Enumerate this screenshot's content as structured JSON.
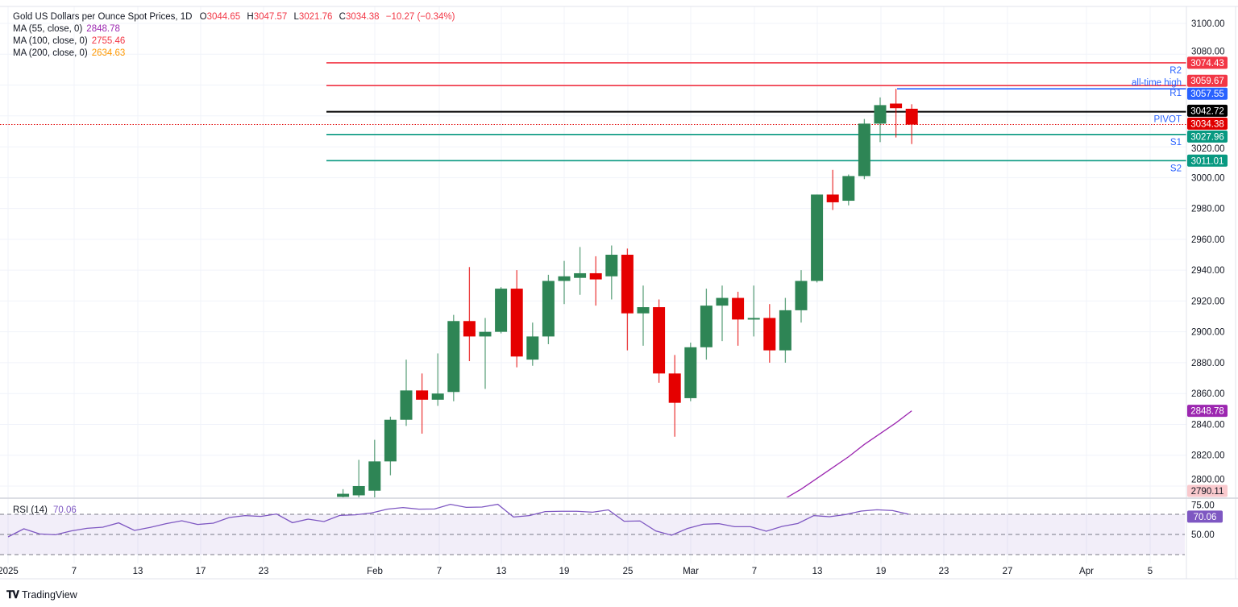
{
  "header": {
    "symbol": "Gold US Dollars per Ounce Spot Prices, 1D",
    "open_label": "O",
    "open": "3044.65",
    "high_label": "H",
    "high": "3047.57",
    "low_label": "L",
    "low": "3021.76",
    "close_label": "C",
    "close": "3034.38",
    "change": "−10.27 (−0.34%)",
    "value_color": "#f23645"
  },
  "indicators": [
    {
      "label": "MA (55, close, 0)",
      "value": "2848.78",
      "color": "#9c27b0"
    },
    {
      "label": "MA (100, close, 0)",
      "value": "2755.46",
      "color": "#f23645"
    },
    {
      "label": "MA (200, close, 0)",
      "value": "2634.63",
      "color": "#ff9800"
    }
  ],
  "price_axis": {
    "ticks": [
      "3100.00",
      "3080.00",
      "3020.00",
      "3000.00",
      "2980.00",
      "2960.00",
      "2940.00",
      "2920.00",
      "2900.00",
      "2880.00",
      "2860.00",
      "2840.00",
      "2820.00",
      "2800.00"
    ]
  },
  "levels": [
    {
      "name": "R2",
      "value": 3074.43,
      "label": "3074.43",
      "color": "#f23645",
      "text_color": "#2962ff"
    },
    {
      "name": "R1",
      "value": 3059.67,
      "label": "3059.67",
      "color": "#f23645",
      "text_color": "#2962ff"
    },
    {
      "name": "PIVOT",
      "value": 3042.72,
      "label": "3042.72",
      "color": "#000000",
      "text_color": "#2962ff"
    },
    {
      "name": "S1",
      "value": 3027.96,
      "label": "3027.96",
      "color": "#089981",
      "text_color": "#2962ff"
    },
    {
      "name": "S2",
      "value": 3011.01,
      "label": "3011.01",
      "color": "#089981",
      "text_color": "#2962ff"
    }
  ],
  "all_time_high": {
    "text": "all-time high",
    "value": 3057.55,
    "label": "3057.55",
    "color": "#2962ff"
  },
  "last_price": {
    "value": 3034.38,
    "label": "3034.38",
    "color": "#e00000"
  },
  "ma55_badge": {
    "label": "2848.78",
    "color": "#9c27b0"
  },
  "low_badge": {
    "label": "2790.11",
    "color": "#f9c9cd"
  },
  "rsi": {
    "title": "RSI (14)",
    "value": "70.06",
    "color": "#7e57c2",
    "ticks": [
      "75.00",
      "50.00"
    ],
    "levels": [
      70,
      50,
      30
    ]
  },
  "time_axis": {
    "labels": [
      "2025",
      "7",
      "13",
      "17",
      "23",
      "Feb",
      "7",
      "13",
      "19",
      "25",
      "Mar",
      "7",
      "13",
      "19",
      "23",
      "27",
      "Apr",
      "5"
    ]
  },
  "footer": {
    "brand": "TradingView"
  },
  "chart_data": {
    "type": "candlestick",
    "title": "Gold US Dollars per Ounce Spot Prices, 1D",
    "ylim": [
      2790,
      3110
    ],
    "up_color": "#2e8555",
    "down_color": "#e50000",
    "candles": [
      {
        "date": "2025-01-30",
        "o": 2793,
        "h": 2798,
        "l": 2790,
        "c": 2795
      },
      {
        "date": "2025-01-31",
        "o": 2794,
        "h": 2817,
        "l": 2791,
        "c": 2800
      },
      {
        "date": "2025-02-03",
        "o": 2797,
        "h": 2830,
        "l": 2792,
        "c": 2816
      },
      {
        "date": "2025-02-04",
        "o": 2816,
        "h": 2845,
        "l": 2807,
        "c": 2843
      },
      {
        "date": "2025-02-05",
        "o": 2843,
        "h": 2882,
        "l": 2839,
        "c": 2862
      },
      {
        "date": "2025-02-06",
        "o": 2862,
        "h": 2873,
        "l": 2834,
        "c": 2856
      },
      {
        "date": "2025-02-07",
        "o": 2856,
        "h": 2886,
        "l": 2852,
        "c": 2860
      },
      {
        "date": "2025-02-10",
        "o": 2861,
        "h": 2911,
        "l": 2855,
        "c": 2907
      },
      {
        "date": "2025-02-11",
        "o": 2907,
        "h": 2942,
        "l": 2881,
        "c": 2897
      },
      {
        "date": "2025-02-12",
        "o": 2897,
        "h": 2909,
        "l": 2863,
        "c": 2900
      },
      {
        "date": "2025-02-13",
        "o": 2900,
        "h": 2929,
        "l": 2899,
        "c": 2928
      },
      {
        "date": "2025-02-14",
        "o": 2928,
        "h": 2940,
        "l": 2877,
        "c": 2884
      },
      {
        "date": "2025-02-17",
        "o": 2882,
        "h": 2906,
        "l": 2878,
        "c": 2897
      },
      {
        "date": "2025-02-18",
        "o": 2897,
        "h": 2937,
        "l": 2892,
        "c": 2933
      },
      {
        "date": "2025-02-19",
        "o": 2933,
        "h": 2946,
        "l": 2918,
        "c": 2936
      },
      {
        "date": "2025-02-20",
        "o": 2935,
        "h": 2955,
        "l": 2924,
        "c": 2938
      },
      {
        "date": "2025-02-21",
        "o": 2938,
        "h": 2949,
        "l": 2917,
        "c": 2934
      },
      {
        "date": "2025-02-24",
        "o": 2936,
        "h": 2956,
        "l": 2921,
        "c": 2950
      },
      {
        "date": "2025-02-25",
        "o": 2950,
        "h": 2954,
        "l": 2888,
        "c": 2912
      },
      {
        "date": "2025-02-26",
        "o": 2912,
        "h": 2930,
        "l": 2891,
        "c": 2916
      },
      {
        "date": "2025-02-27",
        "o": 2916,
        "h": 2921,
        "l": 2867,
        "c": 2873
      },
      {
        "date": "2025-02-28",
        "o": 2873,
        "h": 2885,
        "l": 2832,
        "c": 2854
      },
      {
        "date": "2025-03-03",
        "o": 2857,
        "h": 2893,
        "l": 2855,
        "c": 2890
      },
      {
        "date": "2025-03-04",
        "o": 2890,
        "h": 2928,
        "l": 2882,
        "c": 2917
      },
      {
        "date": "2025-03-05",
        "o": 2917,
        "h": 2930,
        "l": 2894,
        "c": 2922
      },
      {
        "date": "2025-03-06",
        "o": 2922,
        "h": 2926,
        "l": 2891,
        "c": 2908
      },
      {
        "date": "2025-03-07",
        "o": 2908,
        "h": 2930,
        "l": 2897,
        "c": 2909
      },
      {
        "date": "2025-03-10",
        "o": 2909,
        "h": 2918,
        "l": 2880,
        "c": 2888
      },
      {
        "date": "2025-03-11",
        "o": 2888,
        "h": 2922,
        "l": 2880,
        "c": 2914
      },
      {
        "date": "2025-03-12",
        "o": 2914,
        "h": 2940,
        "l": 2906,
        "c": 2933
      },
      {
        "date": "2025-03-13",
        "o": 2933,
        "h": 2989,
        "l": 2932,
        "c": 2989
      },
      {
        "date": "2025-03-14",
        "o": 2989,
        "h": 3005,
        "l": 2979,
        "c": 2984
      },
      {
        "date": "2025-03-17",
        "o": 2985,
        "h": 3002,
        "l": 2982,
        "c": 3001
      },
      {
        "date": "2025-03-18",
        "o": 3001,
        "h": 3038,
        "l": 2999,
        "c": 3035
      },
      {
        "date": "2025-03-19",
        "o": 3035,
        "h": 3052,
        "l": 3023,
        "c": 3047
      },
      {
        "date": "2025-03-20",
        "o": 3048,
        "h": 3057.55,
        "l": 3026,
        "c": 3045
      },
      {
        "date": "2025-03-21",
        "o": 3044.65,
        "h": 3047.57,
        "l": 3021.76,
        "c": 3034.38
      }
    ],
    "ma55": {
      "dates": [
        "2025-03-11",
        "2025-03-12",
        "2025-03-13",
        "2025-03-14",
        "2025-03-17",
        "2025-03-18",
        "2025-03-19",
        "2025-03-20",
        "2025-03-21"
      ],
      "values": [
        2792,
        2798,
        2805,
        2812,
        2819,
        2827,
        2834,
        2841,
        2848.78
      ]
    },
    "rsi": {
      "start_date": "2025-01-01",
      "values": [
        47.6,
        55.6,
        50.5,
        49.7,
        53.5,
        56.1,
        57.2,
        61.5,
        54,
        57,
        60.7,
        63.6,
        59.9,
        61.2,
        66.8,
        68.7,
        67.9,
        70.3,
        61.7,
        65.2,
        62.8,
        68.9,
        69.5,
        71.3,
        75.1,
        76.7,
        75.1,
        75.3,
        79.9,
        76.9,
        77.2,
        79.9,
        67.3,
        68.7,
        72.7,
        73,
        73,
        72.1,
        74.4,
        63.1,
        63.4,
        53.5,
        49.2,
        55.9,
        60.1,
        60.7,
        57.7,
        57.7,
        53.2,
        58,
        60.9,
        68.7,
        67.6,
        69.7,
        73.2,
        74.5,
        73.7,
        70.06
      ]
    }
  }
}
